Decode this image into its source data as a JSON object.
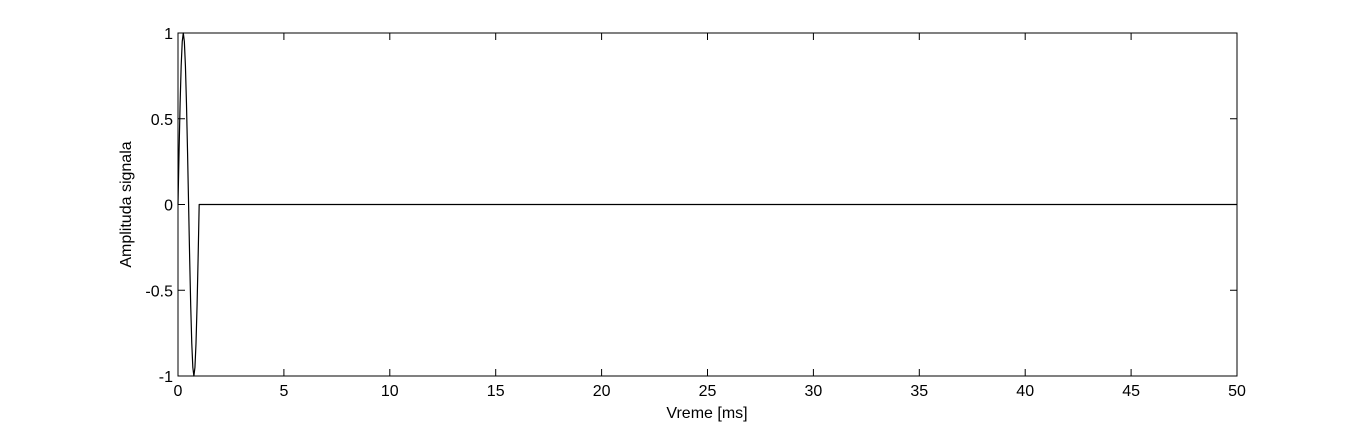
{
  "chart_data": {
    "type": "line",
    "xlabel": "Vreme [ms]",
    "ylabel": "Amplituda signala",
    "xlim": [
      0,
      50
    ],
    "ylim": [
      -1,
      1
    ],
    "xticks": [
      0,
      5,
      10,
      15,
      20,
      25,
      30,
      35,
      40,
      45,
      50
    ],
    "xtick_labels": [
      "0",
      "5",
      "10",
      "15",
      "20",
      "25",
      "30",
      "35",
      "40",
      "45",
      "50"
    ],
    "yticks": [
      -1,
      -0.5,
      0,
      0.5,
      1
    ],
    "ytick_labels": [
      "-1",
      "-0.5",
      "0",
      "0.5",
      "1"
    ],
    "grid": false,
    "series": [
      {
        "color": "#000000",
        "x": [
          0,
          0.05,
          0.1,
          0.15,
          0.2,
          0.25,
          0.3,
          0.35,
          0.4,
          0.45,
          0.5,
          0.55,
          0.6,
          0.65,
          0.7,
          0.75,
          0.8,
          0.85,
          0.9,
          0.95,
          1.0,
          1.05,
          1.1,
          50
        ],
        "y": [
          0,
          0.31,
          0.59,
          0.81,
          0.95,
          1.0,
          0.95,
          0.81,
          0.59,
          0.31,
          0,
          -0.31,
          -0.59,
          -0.81,
          -0.95,
          -1.0,
          -0.95,
          -0.81,
          -0.59,
          -0.31,
          0,
          0,
          0,
          0
        ]
      }
    ]
  }
}
